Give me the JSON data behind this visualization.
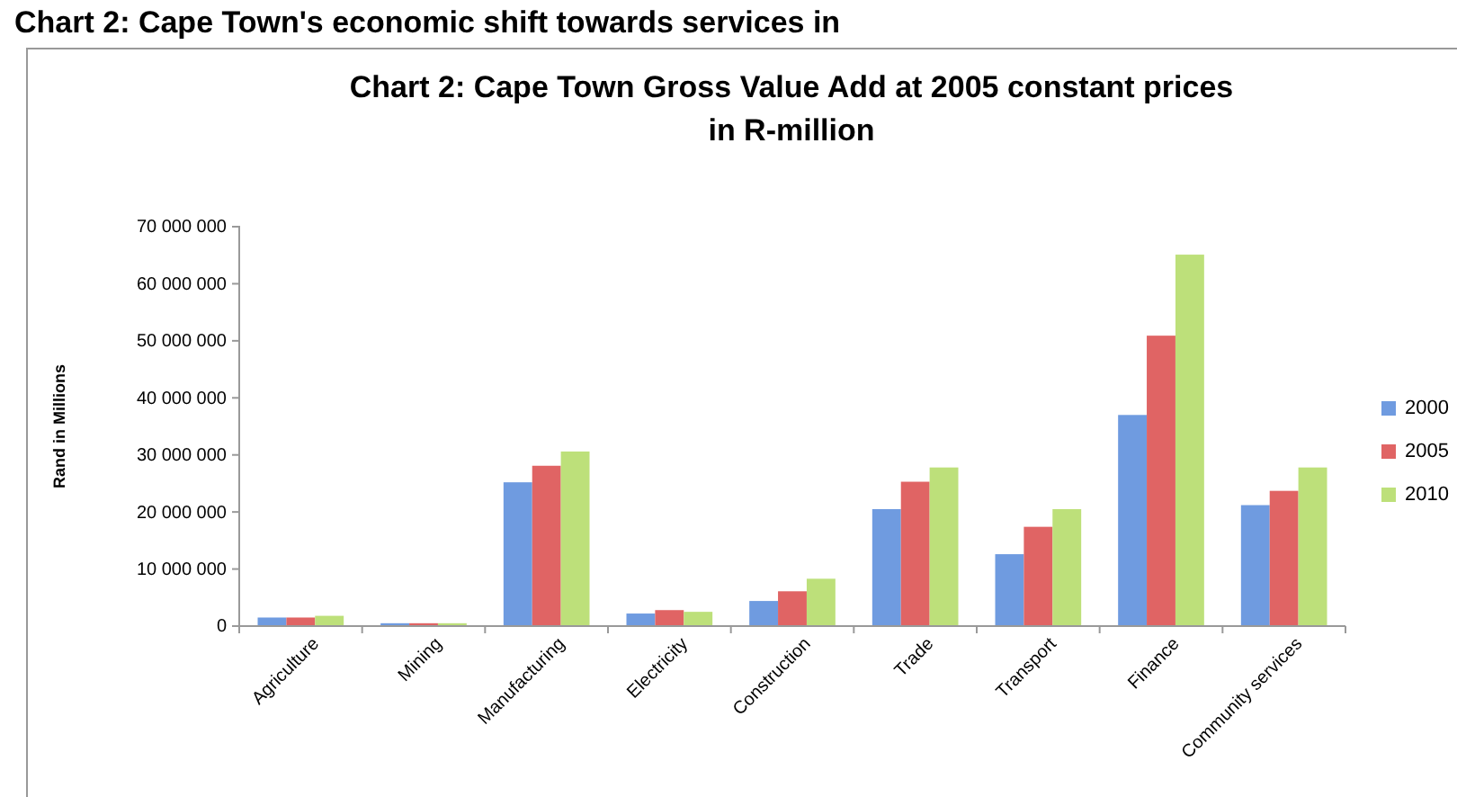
{
  "chart_data": {
    "type": "bar",
    "title": "Chart 2: Cape Town Gross Value Add at 2005 constant prices in R-million",
    "ylabel": "Rand in Millions",
    "annotations": [
      "Chart 2: Cape Town's economic shift towards services in"
    ],
    "categories": [
      "Agriculture",
      "Mining",
      "Manufacturing",
      "Electricity",
      "Construction",
      "Trade",
      "Transport",
      "Finance",
      "Community services"
    ],
    "series": [
      {
        "name": "2000",
        "color": "#6f9be0",
        "values": [
          1500000,
          500000,
          25200000,
          2200000,
          4400000,
          20500000,
          12600000,
          37000000,
          21200000
        ]
      },
      {
        "name": "2005",
        "color": "#e06464",
        "values": [
          1500000,
          500000,
          28100000,
          2800000,
          6100000,
          25300000,
          17400000,
          50900000,
          23700000
        ]
      },
      {
        "name": "2010",
        "color": "#bde07a",
        "values": [
          1800000,
          500000,
          30600000,
          2500000,
          8300000,
          27800000,
          20500000,
          65100000,
          27800000
        ]
      }
    ],
    "ylim": [
      0,
      70000000
    ],
    "yticks": [
      {
        "value": 0,
        "label": "0"
      },
      {
        "value": 10000000,
        "label": "10 000 000"
      },
      {
        "value": 20000000,
        "label": "20 000 000"
      },
      {
        "value": 30000000,
        "label": "30 000 000"
      },
      {
        "value": 40000000,
        "label": "40 000 000"
      },
      {
        "value": 50000000,
        "label": "50 000 000"
      },
      {
        "value": 60000000,
        "label": "60 000 000"
      },
      {
        "value": 70000000,
        "label": "70 000 000"
      }
    ],
    "grid": false,
    "legend": "right"
  }
}
